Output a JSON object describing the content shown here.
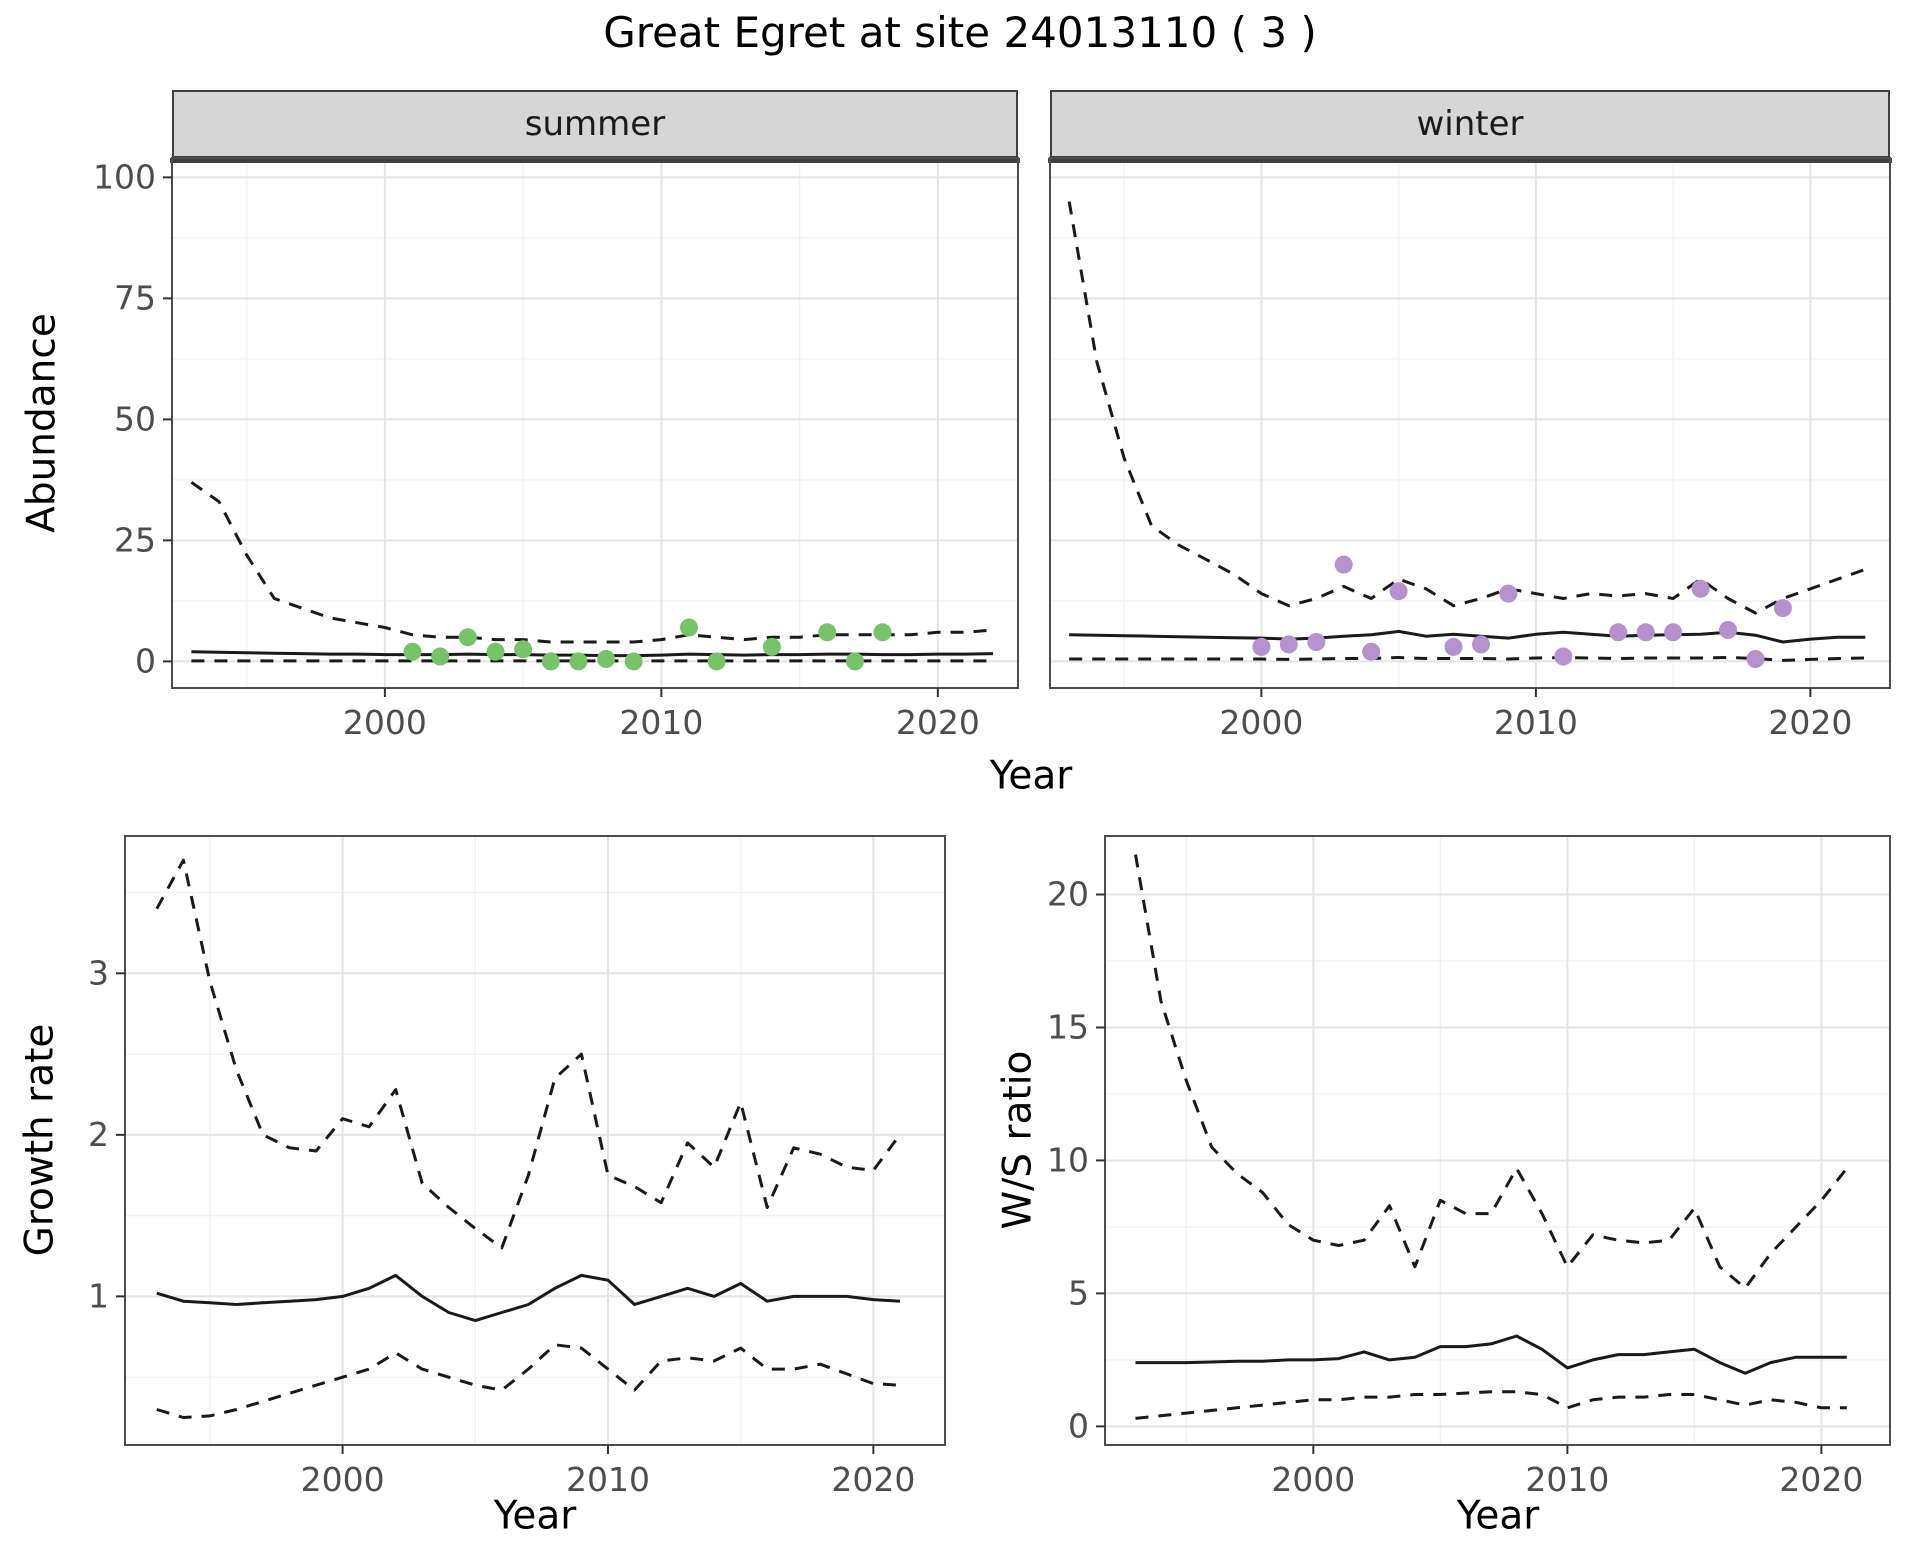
{
  "title": "Great Egret at site 24013110 ( 3 )",
  "facets": {
    "summer": "summer",
    "winter": "winter"
  },
  "axes": {
    "top_x_label": "Year",
    "top_y_label": "Abundance",
    "bottom_left_x_label": "Year",
    "bottom_left_y_label": "Growth rate",
    "bottom_right_x_label": "Year",
    "bottom_right_y_label": "W/S ratio"
  },
  "colors": {
    "summer_points": "#76c368",
    "winter_points": "#b591ce",
    "line": "#1a1a1a",
    "strip_bg": "#d6d6d6",
    "grid_major": "#e4e4e4",
    "grid_minor": "#f2f2f2",
    "panel_border": "#4d4d4d",
    "axis_text": "#4d4d4d"
  },
  "chart_data": [
    {
      "id": "summer",
      "type": "line",
      "facet_label": "summer",
      "x_label": "Year",
      "y_label": "Abundance",
      "x_years": [
        1993,
        1994,
        1995,
        1996,
        1997,
        1998,
        1999,
        2000,
        2001,
        2002,
        2003,
        2004,
        2005,
        2006,
        2007,
        2008,
        2009,
        2010,
        2011,
        2012,
        2013,
        2014,
        2015,
        2016,
        2017,
        2018,
        2019,
        2020,
        2021,
        2022
      ],
      "series": [
        {
          "name": "upper-ci",
          "style": "dashed",
          "values": [
            37,
            33,
            22,
            13,
            11,
            9,
            8,
            7,
            5.5,
            5,
            5,
            4.5,
            4.5,
            4,
            4,
            4,
            4,
            4.5,
            5.5,
            5,
            4.5,
            5,
            5,
            5.5,
            5.5,
            5.5,
            5.5,
            6,
            6,
            6.5
          ]
        },
        {
          "name": "median",
          "style": "solid",
          "values": [
            2,
            1.9,
            1.8,
            1.7,
            1.6,
            1.5,
            1.5,
            1.4,
            1.4,
            1.4,
            1.5,
            1.4,
            1.4,
            1.3,
            1.3,
            1.2,
            1.2,
            1.3,
            1.5,
            1.4,
            1.3,
            1.4,
            1.4,
            1.5,
            1.5,
            1.4,
            1.4,
            1.5,
            1.5,
            1.6
          ]
        },
        {
          "name": "lower-ci",
          "style": "dashed",
          "values": [
            0.1,
            0.1,
            0.1,
            0.1,
            0.1,
            0.1,
            0.1,
            0.1,
            0.1,
            0.1,
            0.1,
            0.1,
            0.1,
            0.1,
            0.1,
            0.1,
            0.1,
            0.1,
            0.1,
            0.1,
            0.1,
            0.1,
            0.1,
            0.1,
            0.1,
            0.1,
            0.1,
            0.1,
            0.1,
            0.1
          ]
        }
      ],
      "points": {
        "name": "summer-observations",
        "color_key": "summer_points",
        "x": [
          2001,
          2002,
          2003,
          2004,
          2005,
          2006,
          2007,
          2008,
          2009,
          2011,
          2012,
          2014,
          2016,
          2017,
          2018
        ],
        "y": [
          2,
          1,
          5,
          2,
          2.5,
          0,
          0,
          0.5,
          0,
          7,
          0,
          3,
          6,
          0,
          6
        ]
      },
      "xlim": [
        1992.3,
        2022.9
      ],
      "ylim": [
        -5.5,
        104
      ],
      "xticks": [
        2000,
        2010,
        2020
      ],
      "yticks": [
        0,
        25,
        50,
        75,
        100
      ],
      "x_minor": [
        1995,
        2005,
        2015
      ],
      "y_minor": [
        12.5,
        37.5,
        62.5,
        87.5
      ],
      "show_y_tick_labels": true
    },
    {
      "id": "winter",
      "type": "line",
      "facet_label": "winter",
      "x_label": "Year",
      "y_label": "Abundance",
      "x_years": [
        1993,
        1994,
        1995,
        1996,
        1997,
        1998,
        1999,
        2000,
        2001,
        2002,
        2003,
        2004,
        2005,
        2006,
        2007,
        2008,
        2009,
        2010,
        2011,
        2012,
        2013,
        2014,
        2015,
        2016,
        2017,
        2018,
        2019,
        2020,
        2021,
        2022
      ],
      "series": [
        {
          "name": "upper-ci",
          "style": "dashed",
          "values": [
            95,
            62,
            42,
            28,
            24,
            21,
            18,
            14,
            11.5,
            13,
            15.5,
            13,
            17,
            15,
            11.5,
            13,
            15,
            14,
            13,
            14,
            13.5,
            14,
            13,
            17,
            13,
            10,
            13,
            15,
            17,
            19
          ]
        },
        {
          "name": "median",
          "style": "solid",
          "values": [
            5.5,
            5.4,
            5.3,
            5.2,
            5.1,
            5.0,
            4.9,
            4.8,
            4.6,
            4.8,
            5.2,
            5.5,
            6.2,
            5.2,
            5.6,
            5.2,
            4.8,
            5.6,
            6.0,
            5.6,
            5.2,
            5.4,
            5.5,
            5.6,
            6.0,
            5.4,
            4.0,
            4.6,
            5.0,
            5.0
          ]
        },
        {
          "name": "lower-ci",
          "style": "dashed",
          "values": [
            0.5,
            0.5,
            0.5,
            0.5,
            0.5,
            0.5,
            0.5,
            0.5,
            0.4,
            0.5,
            0.6,
            0.6,
            0.8,
            0.6,
            0.6,
            0.6,
            0.5,
            0.7,
            0.8,
            0.7,
            0.6,
            0.7,
            0.7,
            0.7,
            0.8,
            0.6,
            0.2,
            0.4,
            0.6,
            0.7
          ]
        }
      ],
      "points": {
        "name": "winter-observations",
        "color_key": "winter_points",
        "x": [
          2000,
          2001,
          2002,
          2003,
          2004,
          2005,
          2007,
          2008,
          2009,
          2011,
          2013,
          2014,
          2015,
          2016,
          2017,
          2018,
          2019
        ],
        "y": [
          3,
          3.5,
          4,
          20,
          2,
          14.5,
          3,
          3.5,
          14,
          1,
          6,
          6,
          6,
          15,
          6.5,
          0.5,
          11
        ]
      },
      "xlim": [
        1992.3,
        2022.9
      ],
      "ylim": [
        -5.5,
        104
      ],
      "xticks": [
        2000,
        2010,
        2020
      ],
      "yticks": [
        0,
        25,
        50,
        75,
        100
      ],
      "x_minor": [
        1995,
        2005,
        2015
      ],
      "y_minor": [
        12.5,
        37.5,
        62.5,
        87.5
      ],
      "show_y_tick_labels": false
    },
    {
      "id": "growth",
      "type": "line",
      "facet_label": "",
      "x_label": "Year",
      "y_label": "Growth rate",
      "x_years": [
        1993,
        1994,
        1995,
        1996,
        1997,
        1998,
        1999,
        2000,
        2001,
        2002,
        2003,
        2004,
        2005,
        2006,
        2007,
        2008,
        2009,
        2010,
        2011,
        2012,
        2013,
        2014,
        2015,
        2016,
        2017,
        2018,
        2019,
        2020,
        2021
      ],
      "series": [
        {
          "name": "upper-ci",
          "style": "dashed",
          "values": [
            3.4,
            3.7,
            2.95,
            2.4,
            2.0,
            1.92,
            1.9,
            2.1,
            2.05,
            2.28,
            1.7,
            1.55,
            1.42,
            1.3,
            1.75,
            2.35,
            2.5,
            1.75,
            1.68,
            1.58,
            1.95,
            1.8,
            2.2,
            1.55,
            1.92,
            1.88,
            1.8,
            1.78,
            2.0
          ]
        },
        {
          "name": "median",
          "style": "solid",
          "values": [
            1.02,
            0.97,
            0.96,
            0.95,
            0.96,
            0.97,
            0.98,
            1.0,
            1.05,
            1.13,
            1.0,
            0.9,
            0.85,
            0.9,
            0.95,
            1.05,
            1.13,
            1.1,
            0.95,
            1.0,
            1.05,
            1.0,
            1.08,
            0.97,
            1.0,
            1.0,
            1.0,
            0.98,
            0.97
          ]
        },
        {
          "name": "lower-ci",
          "style": "dashed",
          "values": [
            0.3,
            0.25,
            0.26,
            0.3,
            0.35,
            0.4,
            0.45,
            0.5,
            0.55,
            0.65,
            0.55,
            0.5,
            0.45,
            0.42,
            0.55,
            0.7,
            0.68,
            0.55,
            0.42,
            0.6,
            0.62,
            0.6,
            0.68,
            0.55,
            0.55,
            0.58,
            0.52,
            0.46,
            0.45
          ]
        }
      ],
      "xlim": [
        1991.8,
        2022.7
      ],
      "ylim": [
        0.08,
        3.85
      ],
      "xticks": [
        2000,
        2010,
        2020
      ],
      "yticks": [
        1,
        2,
        3
      ],
      "x_minor": [
        1995,
        2005,
        2015
      ],
      "y_minor": [
        0.5,
        1.5,
        2.5,
        3.5
      ],
      "show_y_tick_labels": true
    },
    {
      "id": "ws",
      "type": "line",
      "facet_label": "",
      "x_label": "Year",
      "y_label": "W/S ratio",
      "x_years": [
        1993,
        1994,
        1995,
        1996,
        1997,
        1998,
        1999,
        2000,
        2001,
        2002,
        2003,
        2004,
        2005,
        2006,
        2007,
        2008,
        2009,
        2010,
        2011,
        2012,
        2013,
        2014,
        2015,
        2016,
        2017,
        2018,
        2019,
        2020,
        2021
      ],
      "series": [
        {
          "name": "upper-ci",
          "style": "dashed",
          "values": [
            21.5,
            16.0,
            13.0,
            10.5,
            9.5,
            8.8,
            7.6,
            7.0,
            6.8,
            7.0,
            8.3,
            6.0,
            8.5,
            8.0,
            8.0,
            9.7,
            8.0,
            6.0,
            7.2,
            7.0,
            6.9,
            7.0,
            8.2,
            6.0,
            5.2,
            6.5,
            7.5,
            8.5,
            9.7
          ]
        },
        {
          "name": "median",
          "style": "solid",
          "values": [
            2.4,
            2.4,
            2.4,
            2.42,
            2.45,
            2.45,
            2.5,
            2.5,
            2.55,
            2.8,
            2.5,
            2.6,
            3.0,
            3.0,
            3.1,
            3.4,
            2.9,
            2.2,
            2.5,
            2.7,
            2.7,
            2.8,
            2.9,
            2.4,
            2.0,
            2.4,
            2.6,
            2.6,
            2.6
          ]
        },
        {
          "name": "lower-ci",
          "style": "dashed",
          "values": [
            0.3,
            0.4,
            0.5,
            0.6,
            0.7,
            0.8,
            0.9,
            1.0,
            1.0,
            1.1,
            1.1,
            1.2,
            1.2,
            1.25,
            1.3,
            1.3,
            1.2,
            0.7,
            1.0,
            1.1,
            1.1,
            1.2,
            1.2,
            1.0,
            0.8,
            1.0,
            0.9,
            0.7,
            0.7
          ]
        }
      ],
      "xlim": [
        1991.8,
        2022.7
      ],
      "ylim": [
        -0.7,
        22.2
      ],
      "xticks": [
        2000,
        2010,
        2020
      ],
      "yticks": [
        0,
        5,
        10,
        15,
        20
      ],
      "x_minor": [
        1995,
        2005,
        2015
      ],
      "y_minor": [
        2.5,
        7.5,
        12.5,
        17.5
      ],
      "show_y_tick_labels": true
    }
  ]
}
